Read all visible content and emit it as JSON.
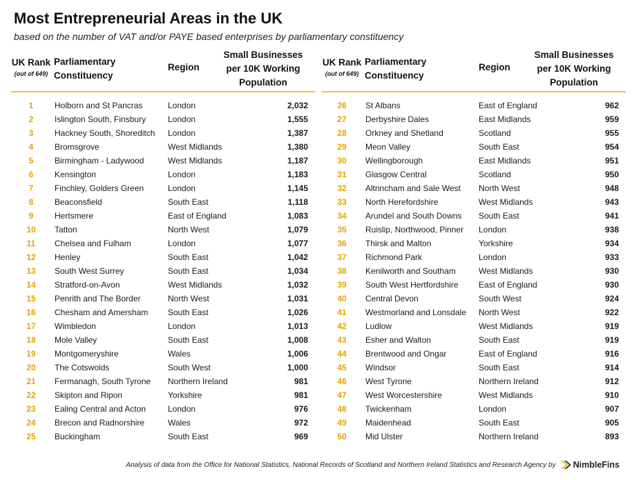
{
  "title": "Most Entrepreneurial Areas in the UK",
  "subtitle": "based on the number of VAT and/or PAYE based enterprises by parliamentary constituency",
  "headers": {
    "rank_line1": "UK Rank",
    "rank_line2": "(out of 649)",
    "constituency_line1": "Parliamentary",
    "constituency_line2": "Constituency",
    "region": "Region",
    "value_line1": "Small Businesses",
    "value_line2": "per 10K Working",
    "value_line3": "Population"
  },
  "colors": {
    "accent": "#f2c12e",
    "rank": "#e6a100"
  },
  "rows": [
    {
      "rank": "1",
      "constituency": "Holborn and St Pancras",
      "region": "London",
      "value": "2,032"
    },
    {
      "rank": "2",
      "constituency": "Islington South, Finsbury",
      "region": "London",
      "value": "1,555"
    },
    {
      "rank": "3",
      "constituency": "Hackney South, Shoreditch",
      "region": "London",
      "value": "1,387"
    },
    {
      "rank": "4",
      "constituency": "Bromsgrove",
      "region": "West Midlands",
      "value": "1,380"
    },
    {
      "rank": "5",
      "constituency": "Birmingham - Ladywood",
      "region": "West Midlands",
      "value": "1,187"
    },
    {
      "rank": "6",
      "constituency": "Kensington",
      "region": "London",
      "value": "1,183"
    },
    {
      "rank": "7",
      "constituency": "Finchley, Golders Green",
      "region": "London",
      "value": "1,145"
    },
    {
      "rank": "8",
      "constituency": "Beaconsfield",
      "region": "South East",
      "value": "1,118"
    },
    {
      "rank": "9",
      "constituency": "Hertsmere",
      "region": "East of England",
      "value": "1,083"
    },
    {
      "rank": "10",
      "constituency": "Tatton",
      "region": "North West",
      "value": "1,079"
    },
    {
      "rank": "11",
      "constituency": "Chelsea and Fulham",
      "region": "London",
      "value": "1,077"
    },
    {
      "rank": "12",
      "constituency": "Henley",
      "region": "South East",
      "value": "1,042"
    },
    {
      "rank": "13",
      "constituency": "South West Surrey",
      "region": "South East",
      "value": "1,034"
    },
    {
      "rank": "14",
      "constituency": "Stratford-on-Avon",
      "region": "West Midlands",
      "value": "1,032"
    },
    {
      "rank": "15",
      "constituency": "Penrith and The Border",
      "region": "North West",
      "value": "1,031"
    },
    {
      "rank": "16",
      "constituency": "Chesham and Amersham",
      "region": "South East",
      "value": "1,026"
    },
    {
      "rank": "17",
      "constituency": "Wimbledon",
      "region": "London",
      "value": "1,013"
    },
    {
      "rank": "18",
      "constituency": "Mole Valley",
      "region": "South East",
      "value": "1,008"
    },
    {
      "rank": "19",
      "constituency": "Montgomeryshire",
      "region": "Wales",
      "value": "1,006"
    },
    {
      "rank": "20",
      "constituency": "The Cotswolds",
      "region": "South West",
      "value": "1,000"
    },
    {
      "rank": "21",
      "constituency": "Fermanagh, South Tyrone",
      "region": "Northern Ireland",
      "value": "981"
    },
    {
      "rank": "22",
      "constituency": "Skipton and Ripon",
      "region": "Yorkshire",
      "value": "981"
    },
    {
      "rank": "23",
      "constituency": "Ealing Central and Acton",
      "region": "London",
      "value": "976"
    },
    {
      "rank": "24",
      "constituency": "Brecon and Radnorshire",
      "region": "Wales",
      "value": "972"
    },
    {
      "rank": "25",
      "constituency": "Buckingham",
      "region": "South East",
      "value": "969"
    },
    {
      "rank": "26",
      "constituency": "St Albans",
      "region": "East of England",
      "value": "962"
    },
    {
      "rank": "27",
      "constituency": "Derbyshire Dales",
      "region": "East Midlands",
      "value": "959"
    },
    {
      "rank": "28",
      "constituency": "Orkney and Shetland",
      "region": "Scotland",
      "value": "955"
    },
    {
      "rank": "29",
      "constituency": "Meon Valley",
      "region": "South East",
      "value": "954"
    },
    {
      "rank": "30",
      "constituency": "Wellingborough",
      "region": "East Midlands",
      "value": "951"
    },
    {
      "rank": "31",
      "constituency": "Glasgow Central",
      "region": "Scotland",
      "value": "950"
    },
    {
      "rank": "32",
      "constituency": "Altrincham and Sale West",
      "region": "North West",
      "value": "948"
    },
    {
      "rank": "33",
      "constituency": "North Herefordshire",
      "region": "West Midlands",
      "value": "943"
    },
    {
      "rank": "34",
      "constituency": "Arundel and South Downs",
      "region": "South East",
      "value": "941"
    },
    {
      "rank": "35",
      "constituency": "Ruislip, Northwood, Pinner",
      "region": "London",
      "value": "938"
    },
    {
      "rank": "36",
      "constituency": "Thirsk and Malton",
      "region": "Yorkshire",
      "value": "934"
    },
    {
      "rank": "37",
      "constituency": "Richmond Park",
      "region": "London",
      "value": "933"
    },
    {
      "rank": "38",
      "constituency": "Kenilworth and Southam",
      "region": "West Midlands",
      "value": "930"
    },
    {
      "rank": "39",
      "constituency": "South West Hertfordshire",
      "region": "East of England",
      "value": "930"
    },
    {
      "rank": "40",
      "constituency": "Central Devon",
      "region": "South West",
      "value": "924"
    },
    {
      "rank": "41",
      "constituency": "Westmorland and Lonsdale",
      "region": "North West",
      "value": "922"
    },
    {
      "rank": "42",
      "constituency": "Ludlow",
      "region": "West Midlands",
      "value": "919"
    },
    {
      "rank": "43",
      "constituency": "Esher and Walton",
      "region": "South East",
      "value": "919"
    },
    {
      "rank": "44",
      "constituency": "Brentwood and Ongar",
      "region": "East of England",
      "value": "916"
    },
    {
      "rank": "45",
      "constituency": "Windsor",
      "region": "South East",
      "value": "914"
    },
    {
      "rank": "46",
      "constituency": "West Tyrone",
      "region": "Northern Ireland",
      "value": "912"
    },
    {
      "rank": "47",
      "constituency": "West Worcestershire",
      "region": "West Midlands",
      "value": "910"
    },
    {
      "rank": "48",
      "constituency": "Twickenham",
      "region": "London",
      "value": "907"
    },
    {
      "rank": "49",
      "constituency": "Maidenhead",
      "region": "South East",
      "value": "905"
    },
    {
      "rank": "50",
      "constituency": "Mid Ulster",
      "region": "Northern Ireland",
      "value": "893"
    }
  ],
  "footer": {
    "source": "Analysis of data from the Office for National Statistics, National Records of Scotland and Northern Ireland Statistics and Research Agency by",
    "logo_icon": "nimblefins-chevron-icon",
    "brand": "NimbleFins"
  }
}
